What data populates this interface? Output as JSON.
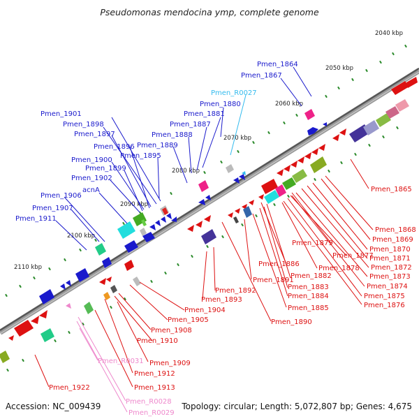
{
  "title": "Pseudomonas mendocina ymp, complete genome",
  "footer": {
    "accession": "Accession: NC_009439",
    "summary": "Topology: circular; Length: 5,072,807 bp; Genes: 4,675"
  },
  "scale_ticks": [
    "2040 kbp",
    "2050 kbp",
    "2060 kbp",
    "2070 kbp",
    "2080 kbp",
    "2090 kbp",
    "2100 kbp",
    "2110 kbp"
  ],
  "colors": {
    "forward_labels": "#1a1acc",
    "reverse_labels": "#dd1111",
    "rna_light_blue": "#33bbee",
    "rna_pink": "#ee88cc",
    "backbone": "#888888",
    "tick_dots": "#2a8a2a"
  },
  "labels": {
    "top_blue": [
      "Pmen_1864",
      "Pmen_1867"
    ],
    "top_cyan": [
      "Pmen_R0027"
    ],
    "middle_blue": [
      "Pmen_1880",
      "Pmen_1881",
      "Pmen_1887",
      "Pmen_1888",
      "Pmen_1889"
    ],
    "left_blue": [
      "Pmen_1901",
      "Pmen_1898",
      "Pmen_1897",
      "Pmen_1896",
      "Pmen_1895",
      "Pmen_1900",
      "Pmen_1899",
      "Pmen_1902",
      "acnA",
      "Pmen_1906",
      "Pmen_1907",
      "Pmen_1911"
    ],
    "right_red": [
      "Pmen_1865",
      "Pmen_1868",
      "Pmen_1869",
      "Pmen_1870",
      "Pmen_1871",
      "Pmen_1872",
      "Pmen_1873",
      "Pmen_1874",
      "Pmen_1875",
      "Pmen_1876",
      "Pmen_1879",
      "Pmen_1877",
      "Pmen_1878",
      "Pmen_1886",
      "Pmen_1882",
      "Pmen_1883",
      "Pmen_1884",
      "Pmen_1885",
      "Pmen_1891",
      "Pmen_1892",
      "Pmen_1893",
      "Pmen_1890",
      "Pmen_1904",
      "Pmen_1905",
      "Pmen_1908",
      "Pmen_1910",
      "Pmen_1909",
      "Pmen_1912",
      "Pmen_1913",
      "Pmen_1922"
    ],
    "bottom_pink": [
      "Pmen_R0031",
      "Pmen_R0028",
      "Pmen_R0029"
    ]
  }
}
